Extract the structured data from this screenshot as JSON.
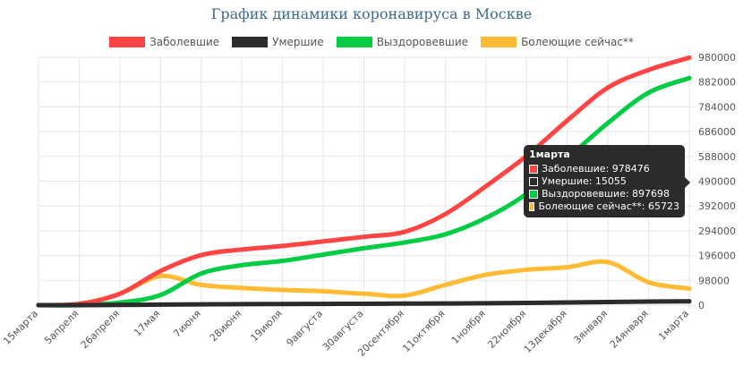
{
  "title": "График динамики коронавируса в Москве",
  "chart_data": {
    "type": "line",
    "x": [
      "15марта",
      "5апреля",
      "26апреля",
      "17мая",
      "7июня",
      "28июня",
      "19июля",
      "9августа",
      "30августа",
      "20сентября",
      "11октября",
      "1ноября",
      "22ноября",
      "13декабря",
      "3января",
      "24января",
      "1марта"
    ],
    "ylim": [
      0,
      980000
    ],
    "yticks": [
      0,
      98000,
      196000,
      294000,
      392000,
      490000,
      588000,
      686000,
      784000,
      882000,
      980000
    ],
    "grid": true,
    "legend": "top",
    "series": [
      {
        "name": "Заболевшие",
        "color": "#ff4444",
        "values": [
          0,
          5000,
          45000,
          135000,
          198000,
          220000,
          234000,
          252000,
          270000,
          290000,
          360000,
          470000,
          590000,
          730000,
          860000,
          930000,
          978476
        ]
      },
      {
        "name": "Умершие",
        "color": "#2b2b2b",
        "values": [
          0,
          0,
          1000,
          2000,
          3000,
          4000,
          4500,
          5000,
          5500,
          6000,
          6500,
          7500,
          9000,
          10500,
          12500,
          14000,
          15055
        ]
      },
      {
        "name": "Выздоровевшие",
        "color": "#00cc44",
        "values": [
          0,
          0,
          10000,
          40000,
          125000,
          158000,
          175000,
          200000,
          225000,
          248000,
          280000,
          345000,
          440000,
          580000,
          720000,
          840000,
          897698
        ]
      },
      {
        "name": "Болеющие сейчас**",
        "color": "#ffbb33",
        "values": [
          0,
          5000,
          45000,
          115000,
          80000,
          68000,
          60000,
          55000,
          45000,
          38000,
          80000,
          120000,
          140000,
          150000,
          170000,
          90000,
          65723
        ]
      }
    ]
  },
  "tooltip": {
    "title": "1марта",
    "rows": [
      {
        "label": "Заболевшие: 978476",
        "color": "#ff4444"
      },
      {
        "label": "Умершие: 15055",
        "color": "#2b2b2b"
      },
      {
        "label": "Выздоровевшие: 897698",
        "color": "#00cc44"
      },
      {
        "label": "Болеющие сейчас**: 65723",
        "color": "#ffbb33"
      }
    ]
  }
}
